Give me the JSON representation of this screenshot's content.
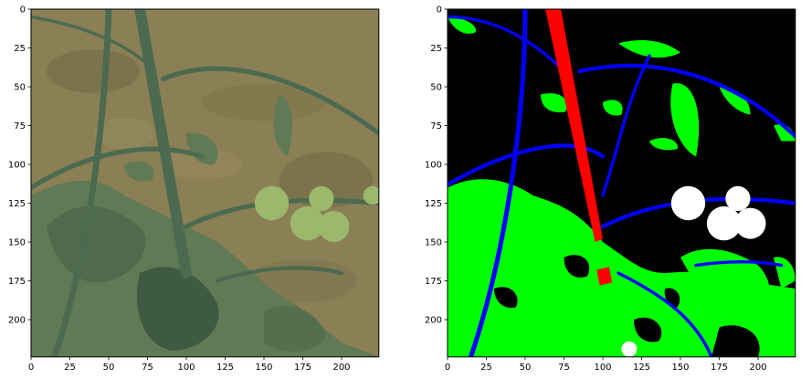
{
  "chart_data": [
    {
      "type": "image",
      "panel": "left-photo",
      "content": "greenhouse tomato plant photograph",
      "xlim": [
        0,
        224
      ],
      "ylim": [
        224,
        0
      ],
      "x_ticks": [
        0,
        25,
        50,
        75,
        100,
        125,
        150,
        175,
        200
      ],
      "y_ticks": [
        0,
        25,
        50,
        75,
        100,
        125,
        150,
        175,
        200
      ],
      "colors": {
        "ground": "#8a7f55",
        "ground_dark": "#6f6a45",
        "leaf": "#5f7a55",
        "leaf_dark": "#3f5a43",
        "stem": "#4b6a50",
        "fruit": "#9bb86c"
      }
    },
    {
      "type": "image",
      "panel": "right-segmentation",
      "content": "segmentation mask of tomato plant",
      "xlim": [
        0,
        224
      ],
      "ylim": [
        224,
        0
      ],
      "x_ticks": [
        0,
        25,
        50,
        75,
        100,
        125,
        150,
        175,
        200
      ],
      "y_ticks": [
        0,
        25,
        50,
        75,
        100,
        125,
        150,
        175,
        200
      ],
      "colors": {
        "background": "#000000",
        "leaf": "#00ff00",
        "stem": "#0000ff",
        "main_stem": "#ff0000",
        "fruit": "#ffffff"
      }
    }
  ]
}
